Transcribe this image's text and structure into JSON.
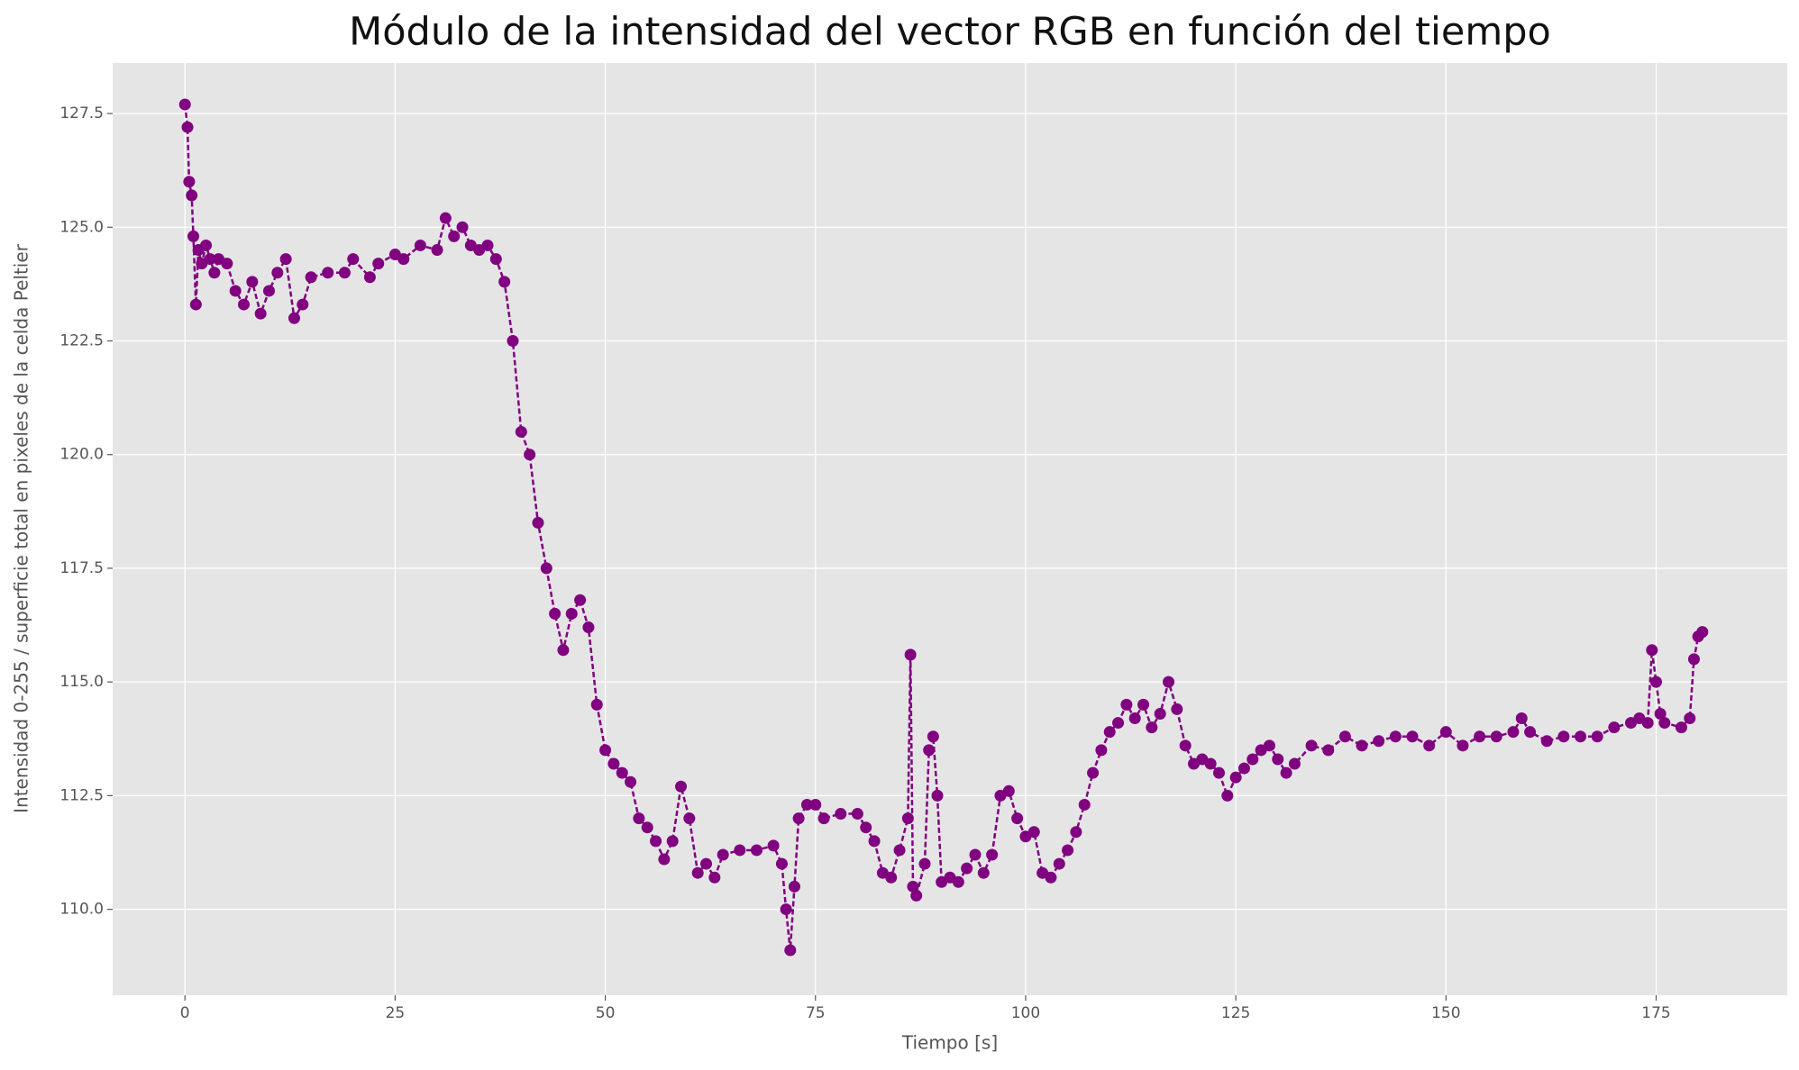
{
  "chart_data": {
    "type": "line",
    "title": "Módulo de la intensidad del vector RGB en función del tiempo",
    "xlabel": "Tiempo [s]",
    "ylabel": "Intensidad 0-255 / superficie total en pixeles de la celda Peltier",
    "xlim": [
      -8.6,
      190.6
    ],
    "ylim": [
      108.11,
      128.61
    ],
    "xticks": [
      0,
      25,
      50,
      75,
      100,
      125,
      150,
      175
    ],
    "yticks": [
      {
        "value": 110,
        "label": "110.0"
      },
      112.5,
      {
        "value": 115,
        "label": "115.0"
      },
      117.5,
      {
        "value": 120,
        "label": "120.0"
      },
      122.5,
      {
        "value": 125,
        "label": "125.0"
      },
      127.5
    ],
    "grid": true,
    "series": [
      {
        "color": "#800080",
        "x": [
          0,
          0.3,
          0.5,
          0.8,
          1.0,
          1.3,
          1.6,
          2,
          2.5,
          3,
          3.5,
          4,
          5,
          6,
          7,
          8,
          9,
          10,
          11,
          12,
          13,
          14,
          15,
          17,
          19,
          20,
          22,
          23,
          25,
          26,
          28,
          30,
          31,
          32,
          33,
          34,
          35,
          36,
          37,
          38,
          39,
          40,
          41,
          42,
          43,
          44,
          45,
          46,
          47,
          48,
          49,
          50,
          51,
          52,
          53,
          54,
          55,
          56,
          57,
          58,
          59,
          60,
          61,
          62,
          63,
          64,
          66,
          68,
          70,
          71,
          71.5,
          72,
          72.5,
          73,
          74,
          75,
          76,
          78,
          80,
          81,
          82,
          83,
          84,
          85,
          86,
          86.3,
          86.6,
          87,
          88,
          88.5,
          89,
          89.5,
          90,
          91,
          92,
          93,
          94,
          95,
          96,
          97,
          98,
          99,
          100,
          101,
          102,
          103,
          104,
          105,
          106,
          107,
          108,
          109,
          110,
          111,
          112,
          113,
          114,
          115,
          116,
          117,
          118,
          119,
          120,
          121,
          122,
          123,
          124,
          125,
          126,
          127,
          128,
          129,
          130,
          131,
          132,
          134,
          136,
          138,
          140,
          142,
          144,
          146,
          148,
          150,
          152,
          154,
          156,
          158,
          159,
          160,
          162,
          164,
          166,
          168,
          170,
          172,
          173,
          174,
          174.5,
          175,
          175.5,
          176,
          178,
          179,
          179.5,
          180,
          180.5
        ],
        "values": [
          127.7,
          127.2,
          126,
          125.7,
          124.8,
          123.3,
          124.5,
          124.2,
          124.6,
          124.3,
          124,
          124.3,
          124.2,
          123.6,
          123.3,
          123.8,
          123.1,
          123.6,
          124,
          124.3,
          123,
          123.3,
          123.9,
          124,
          124,
          124.3,
          123.9,
          124.2,
          124.4,
          124.3,
          124.6,
          124.5,
          125.2,
          124.8,
          125,
          124.6,
          124.5,
          124.6,
          124.3,
          123.8,
          122.5,
          120.5,
          120,
          118.5,
          117.5,
          116.5,
          115.7,
          116.5,
          116.8,
          116.2,
          114.5,
          113.5,
          113.2,
          113,
          112.8,
          112,
          111.8,
          111.5,
          111.1,
          111.5,
          112.7,
          112,
          110.8,
          111,
          110.7,
          111.2,
          111.3,
          111.3,
          111.4,
          111,
          110,
          109.1,
          110.5,
          112,
          112.3,
          112.3,
          112,
          112.1,
          112.1,
          111.8,
          111.5,
          110.8,
          110.7,
          111.3,
          112,
          115.6,
          110.5,
          110.3,
          111,
          113.5,
          113.8,
          112.5,
          110.6,
          110.7,
          110.6,
          110.9,
          111.2,
          110.8,
          111.2,
          112.5,
          112.6,
          112,
          111.6,
          111.7,
          110.8,
          110.7,
          111,
          111.3,
          111.7,
          112.3,
          113,
          113.5,
          113.9,
          114.1,
          114.5,
          114.2,
          114.5,
          114,
          114.3,
          115,
          114.4,
          113.6,
          113.2,
          113.3,
          113.2,
          113,
          112.5,
          112.9,
          113.1,
          113.3,
          113.5,
          113.6,
          113.3,
          113,
          113.2,
          113.6,
          113.5,
          113.8,
          113.6,
          113.7,
          113.8,
          113.8,
          113.6,
          113.9,
          113.6,
          113.8,
          113.8,
          113.9,
          114.2,
          113.9,
          113.7,
          113.8,
          113.8,
          113.8,
          114,
          114.1,
          114.2,
          114.1,
          115.7,
          115,
          114.3,
          114.1,
          114,
          114.2,
          115.5,
          116,
          116.1
        ]
      }
    ]
  }
}
